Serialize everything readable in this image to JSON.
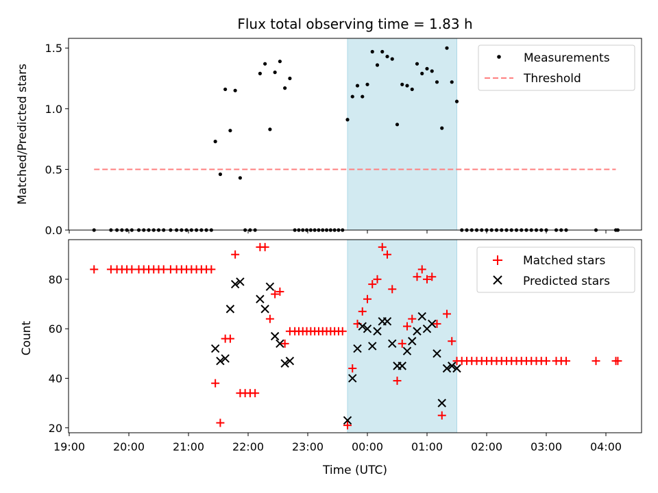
{
  "figure": {
    "title": "Flux total observing time = 1.83 h",
    "shade_start": "23:40",
    "shade_end": "01:30",
    "shade_color": "#add8e6",
    "x_axis_label": "Time (UTC)",
    "x_ticks": [
      "19:00",
      "20:00",
      "21:00",
      "22:00",
      "23:00",
      "00:00",
      "01:00",
      "02:00",
      "03:00",
      "04:00"
    ]
  },
  "chart_data": [
    {
      "type": "scatter",
      "title": "Flux total observing time = 1.83 h",
      "xlabel": "",
      "ylabel": "Matched/Predicted stars",
      "ylim": [
        0,
        1.58
      ],
      "y_ticks": [
        "0.0",
        "0.5",
        "1.0",
        "1.5"
      ],
      "legend_position": "top-right",
      "series": [
        {
          "name": "Measurements",
          "color": "#000000",
          "marker": "dot",
          "points": [
            [
              "19:25",
              0
            ],
            [
              "19:42",
              0
            ],
            [
              "19:48",
              0
            ],
            [
              "19:53",
              0
            ],
            [
              "19:58",
              0
            ],
            [
              "20:03",
              0
            ],
            [
              "20:10",
              0
            ],
            [
              "20:15",
              0
            ],
            [
              "20:20",
              0
            ],
            [
              "20:25",
              0
            ],
            [
              "20:30",
              0
            ],
            [
              "20:35",
              0
            ],
            [
              "20:42",
              0
            ],
            [
              "20:48",
              0
            ],
            [
              "20:53",
              0
            ],
            [
              "20:58",
              0
            ],
            [
              "21:03",
              0
            ],
            [
              "21:08",
              0
            ],
            [
              "21:13",
              0
            ],
            [
              "21:18",
              0
            ],
            [
              "21:23",
              0
            ],
            [
              "21:27",
              0.73
            ],
            [
              "21:32",
              0.46
            ],
            [
              "21:37",
              1.16
            ],
            [
              "21:42",
              0.82
            ],
            [
              "21:47",
              1.15
            ],
            [
              "21:52",
              0.43
            ],
            [
              "21:57",
              0
            ],
            [
              "22:02",
              0
            ],
            [
              "22:07",
              0
            ],
            [
              "22:12",
              1.29
            ],
            [
              "22:17",
              1.37
            ],
            [
              "22:22",
              0.83
            ],
            [
              "22:27",
              1.3
            ],
            [
              "22:32",
              1.39
            ],
            [
              "22:37",
              1.17
            ],
            [
              "22:42",
              1.25
            ],
            [
              "22:47",
              0
            ],
            [
              "22:51",
              0
            ],
            [
              "22:55",
              0
            ],
            [
              "22:59",
              0
            ],
            [
              "23:03",
              0
            ],
            [
              "23:07",
              0
            ],
            [
              "23:11",
              0
            ],
            [
              "23:15",
              0
            ],
            [
              "23:19",
              0
            ],
            [
              "23:23",
              0
            ],
            [
              "23:27",
              0
            ],
            [
              "23:31",
              0
            ],
            [
              "23:35",
              0
            ],
            [
              "23:40",
              0.91
            ],
            [
              "23:45",
              1.1
            ],
            [
              "23:50",
              1.19
            ],
            [
              "23:55",
              1.1
            ],
            [
              "00:00",
              1.2
            ],
            [
              "00:05",
              1.47
            ],
            [
              "00:10",
              1.36
            ],
            [
              "00:15",
              1.47
            ],
            [
              "00:20",
              1.43
            ],
            [
              "00:25",
              1.41
            ],
            [
              "00:30",
              0.87
            ],
            [
              "00:35",
              1.2
            ],
            [
              "00:40",
              1.19
            ],
            [
              "00:45",
              1.16
            ],
            [
              "00:50",
              1.37
            ],
            [
              "00:55",
              1.29
            ],
            [
              "01:00",
              1.33
            ],
            [
              "01:05",
              1.31
            ],
            [
              "01:10",
              1.22
            ],
            [
              "01:15",
              0.84
            ],
            [
              "01:20",
              1.5
            ],
            [
              "01:25",
              1.22
            ],
            [
              "01:30",
              1.06
            ],
            [
              "01:35",
              0
            ],
            [
              "01:40",
              0
            ],
            [
              "01:45",
              0
            ],
            [
              "01:50",
              0
            ],
            [
              "01:55",
              0
            ],
            [
              "02:00",
              0
            ],
            [
              "02:05",
              0
            ],
            [
              "02:10",
              0
            ],
            [
              "02:15",
              0
            ],
            [
              "02:20",
              0
            ],
            [
              "02:25",
              0
            ],
            [
              "02:30",
              0
            ],
            [
              "02:35",
              0
            ],
            [
              "02:40",
              0
            ],
            [
              "02:45",
              0
            ],
            [
              "02:50",
              0
            ],
            [
              "02:55",
              0
            ],
            [
              "03:00",
              0
            ],
            [
              "03:10",
              0
            ],
            [
              "03:15",
              0
            ],
            [
              "03:20",
              0
            ],
            [
              "03:50",
              0
            ],
            [
              "04:10",
              0
            ],
            [
              "04:12",
              0
            ]
          ]
        },
        {
          "name": "Threshold",
          "color": "#ff7f7f",
          "line": "dashed",
          "points": [
            [
              "19:25",
              0.5
            ],
            [
              "04:10",
              0.5
            ]
          ]
        }
      ]
    },
    {
      "type": "scatter",
      "xlabel": "Time (UTC)",
      "ylabel": "Count",
      "ylim": [
        18,
        96
      ],
      "y_ticks": [
        "20",
        "40",
        "60",
        "80"
      ],
      "legend_position": "top-right",
      "series": [
        {
          "name": "Matched stars",
          "color": "#ff0000",
          "marker": "plus",
          "points": [
            [
              "19:25",
              84
            ],
            [
              "19:42",
              84
            ],
            [
              "19:48",
              84
            ],
            [
              "19:53",
              84
            ],
            [
              "19:58",
              84
            ],
            [
              "20:03",
              84
            ],
            [
              "20:10",
              84
            ],
            [
              "20:15",
              84
            ],
            [
              "20:20",
              84
            ],
            [
              "20:25",
              84
            ],
            [
              "20:30",
              84
            ],
            [
              "20:35",
              84
            ],
            [
              "20:42",
              84
            ],
            [
              "20:48",
              84
            ],
            [
              "20:53",
              84
            ],
            [
              "20:58",
              84
            ],
            [
              "21:03",
              84
            ],
            [
              "21:08",
              84
            ],
            [
              "21:13",
              84
            ],
            [
              "21:18",
              84
            ],
            [
              "21:23",
              84
            ],
            [
              "21:27",
              38
            ],
            [
              "21:32",
              22
            ],
            [
              "21:37",
              56
            ],
            [
              "21:42",
              56
            ],
            [
              "21:47",
              90
            ],
            [
              "21:52",
              34
            ],
            [
              "21:57",
              34
            ],
            [
              "22:02",
              34
            ],
            [
              "22:07",
              34
            ],
            [
              "22:12",
              93
            ],
            [
              "22:17",
              93
            ],
            [
              "22:22",
              64
            ],
            [
              "22:27",
              74
            ],
            [
              "22:32",
              75
            ],
            [
              "22:37",
              54
            ],
            [
              "22:42",
              59
            ],
            [
              "22:47",
              59
            ],
            [
              "22:51",
              59
            ],
            [
              "22:55",
              59
            ],
            [
              "22:59",
              59
            ],
            [
              "23:03",
              59
            ],
            [
              "23:07",
              59
            ],
            [
              "23:11",
              59
            ],
            [
              "23:15",
              59
            ],
            [
              "23:19",
              59
            ],
            [
              "23:23",
              59
            ],
            [
              "23:27",
              59
            ],
            [
              "23:31",
              59
            ],
            [
              "23:35",
              59
            ],
            [
              "23:40",
              21
            ],
            [
              "23:45",
              44
            ],
            [
              "23:50",
              62
            ],
            [
              "23:55",
              67
            ],
            [
              "00:00",
              72
            ],
            [
              "00:05",
              78
            ],
            [
              "00:10",
              80
            ],
            [
              "00:15",
              93
            ],
            [
              "00:20",
              90
            ],
            [
              "00:25",
              76
            ],
            [
              "00:30",
              39
            ],
            [
              "00:35",
              54
            ],
            [
              "00:40",
              61
            ],
            [
              "00:45",
              64
            ],
            [
              "00:50",
              81
            ],
            [
              "00:55",
              84
            ],
            [
              "01:00",
              80
            ],
            [
              "01:05",
              81
            ],
            [
              "01:10",
              62
            ],
            [
              "01:15",
              25
            ],
            [
              "01:20",
              66
            ],
            [
              "01:25",
              55
            ],
            [
              "01:30",
              47
            ],
            [
              "01:35",
              47
            ],
            [
              "01:40",
              47
            ],
            [
              "01:45",
              47
            ],
            [
              "01:50",
              47
            ],
            [
              "01:55",
              47
            ],
            [
              "02:00",
              47
            ],
            [
              "02:05",
              47
            ],
            [
              "02:10",
              47
            ],
            [
              "02:15",
              47
            ],
            [
              "02:20",
              47
            ],
            [
              "02:25",
              47
            ],
            [
              "02:30",
              47
            ],
            [
              "02:35",
              47
            ],
            [
              "02:40",
              47
            ],
            [
              "02:45",
              47
            ],
            [
              "02:50",
              47
            ],
            [
              "02:55",
              47
            ],
            [
              "03:00",
              47
            ],
            [
              "03:10",
              47
            ],
            [
              "03:15",
              47
            ],
            [
              "03:20",
              47
            ],
            [
              "03:50",
              47
            ],
            [
              "04:10",
              47
            ],
            [
              "04:12",
              47
            ]
          ]
        },
        {
          "name": "Predicted stars",
          "color": "#000000",
          "marker": "x",
          "points": [
            [
              "21:27",
              52
            ],
            [
              "21:32",
              47
            ],
            [
              "21:37",
              48
            ],
            [
              "21:42",
              68
            ],
            [
              "21:47",
              78
            ],
            [
              "21:52",
              79
            ],
            [
              "22:12",
              72
            ],
            [
              "22:17",
              68
            ],
            [
              "22:22",
              77
            ],
            [
              "22:27",
              57
            ],
            [
              "22:32",
              54
            ],
            [
              "22:37",
              46
            ],
            [
              "22:42",
              47
            ],
            [
              "23:40",
              23
            ],
            [
              "23:45",
              40
            ],
            [
              "23:50",
              52
            ],
            [
              "23:55",
              61
            ],
            [
              "00:00",
              60
            ],
            [
              "00:05",
              53
            ],
            [
              "00:10",
              59
            ],
            [
              "00:15",
              63
            ],
            [
              "00:20",
              63
            ],
            [
              "00:25",
              54
            ],
            [
              "00:30",
              45
            ],
            [
              "00:35",
              45
            ],
            [
              "00:40",
              51
            ],
            [
              "00:45",
              55
            ],
            [
              "00:50",
              59
            ],
            [
              "00:55",
              65
            ],
            [
              "01:00",
              60
            ],
            [
              "01:05",
              62
            ],
            [
              "01:10",
              50
            ],
            [
              "01:15",
              30
            ],
            [
              "01:20",
              44
            ],
            [
              "01:25",
              45
            ],
            [
              "01:30",
              44
            ]
          ]
        }
      ]
    }
  ]
}
